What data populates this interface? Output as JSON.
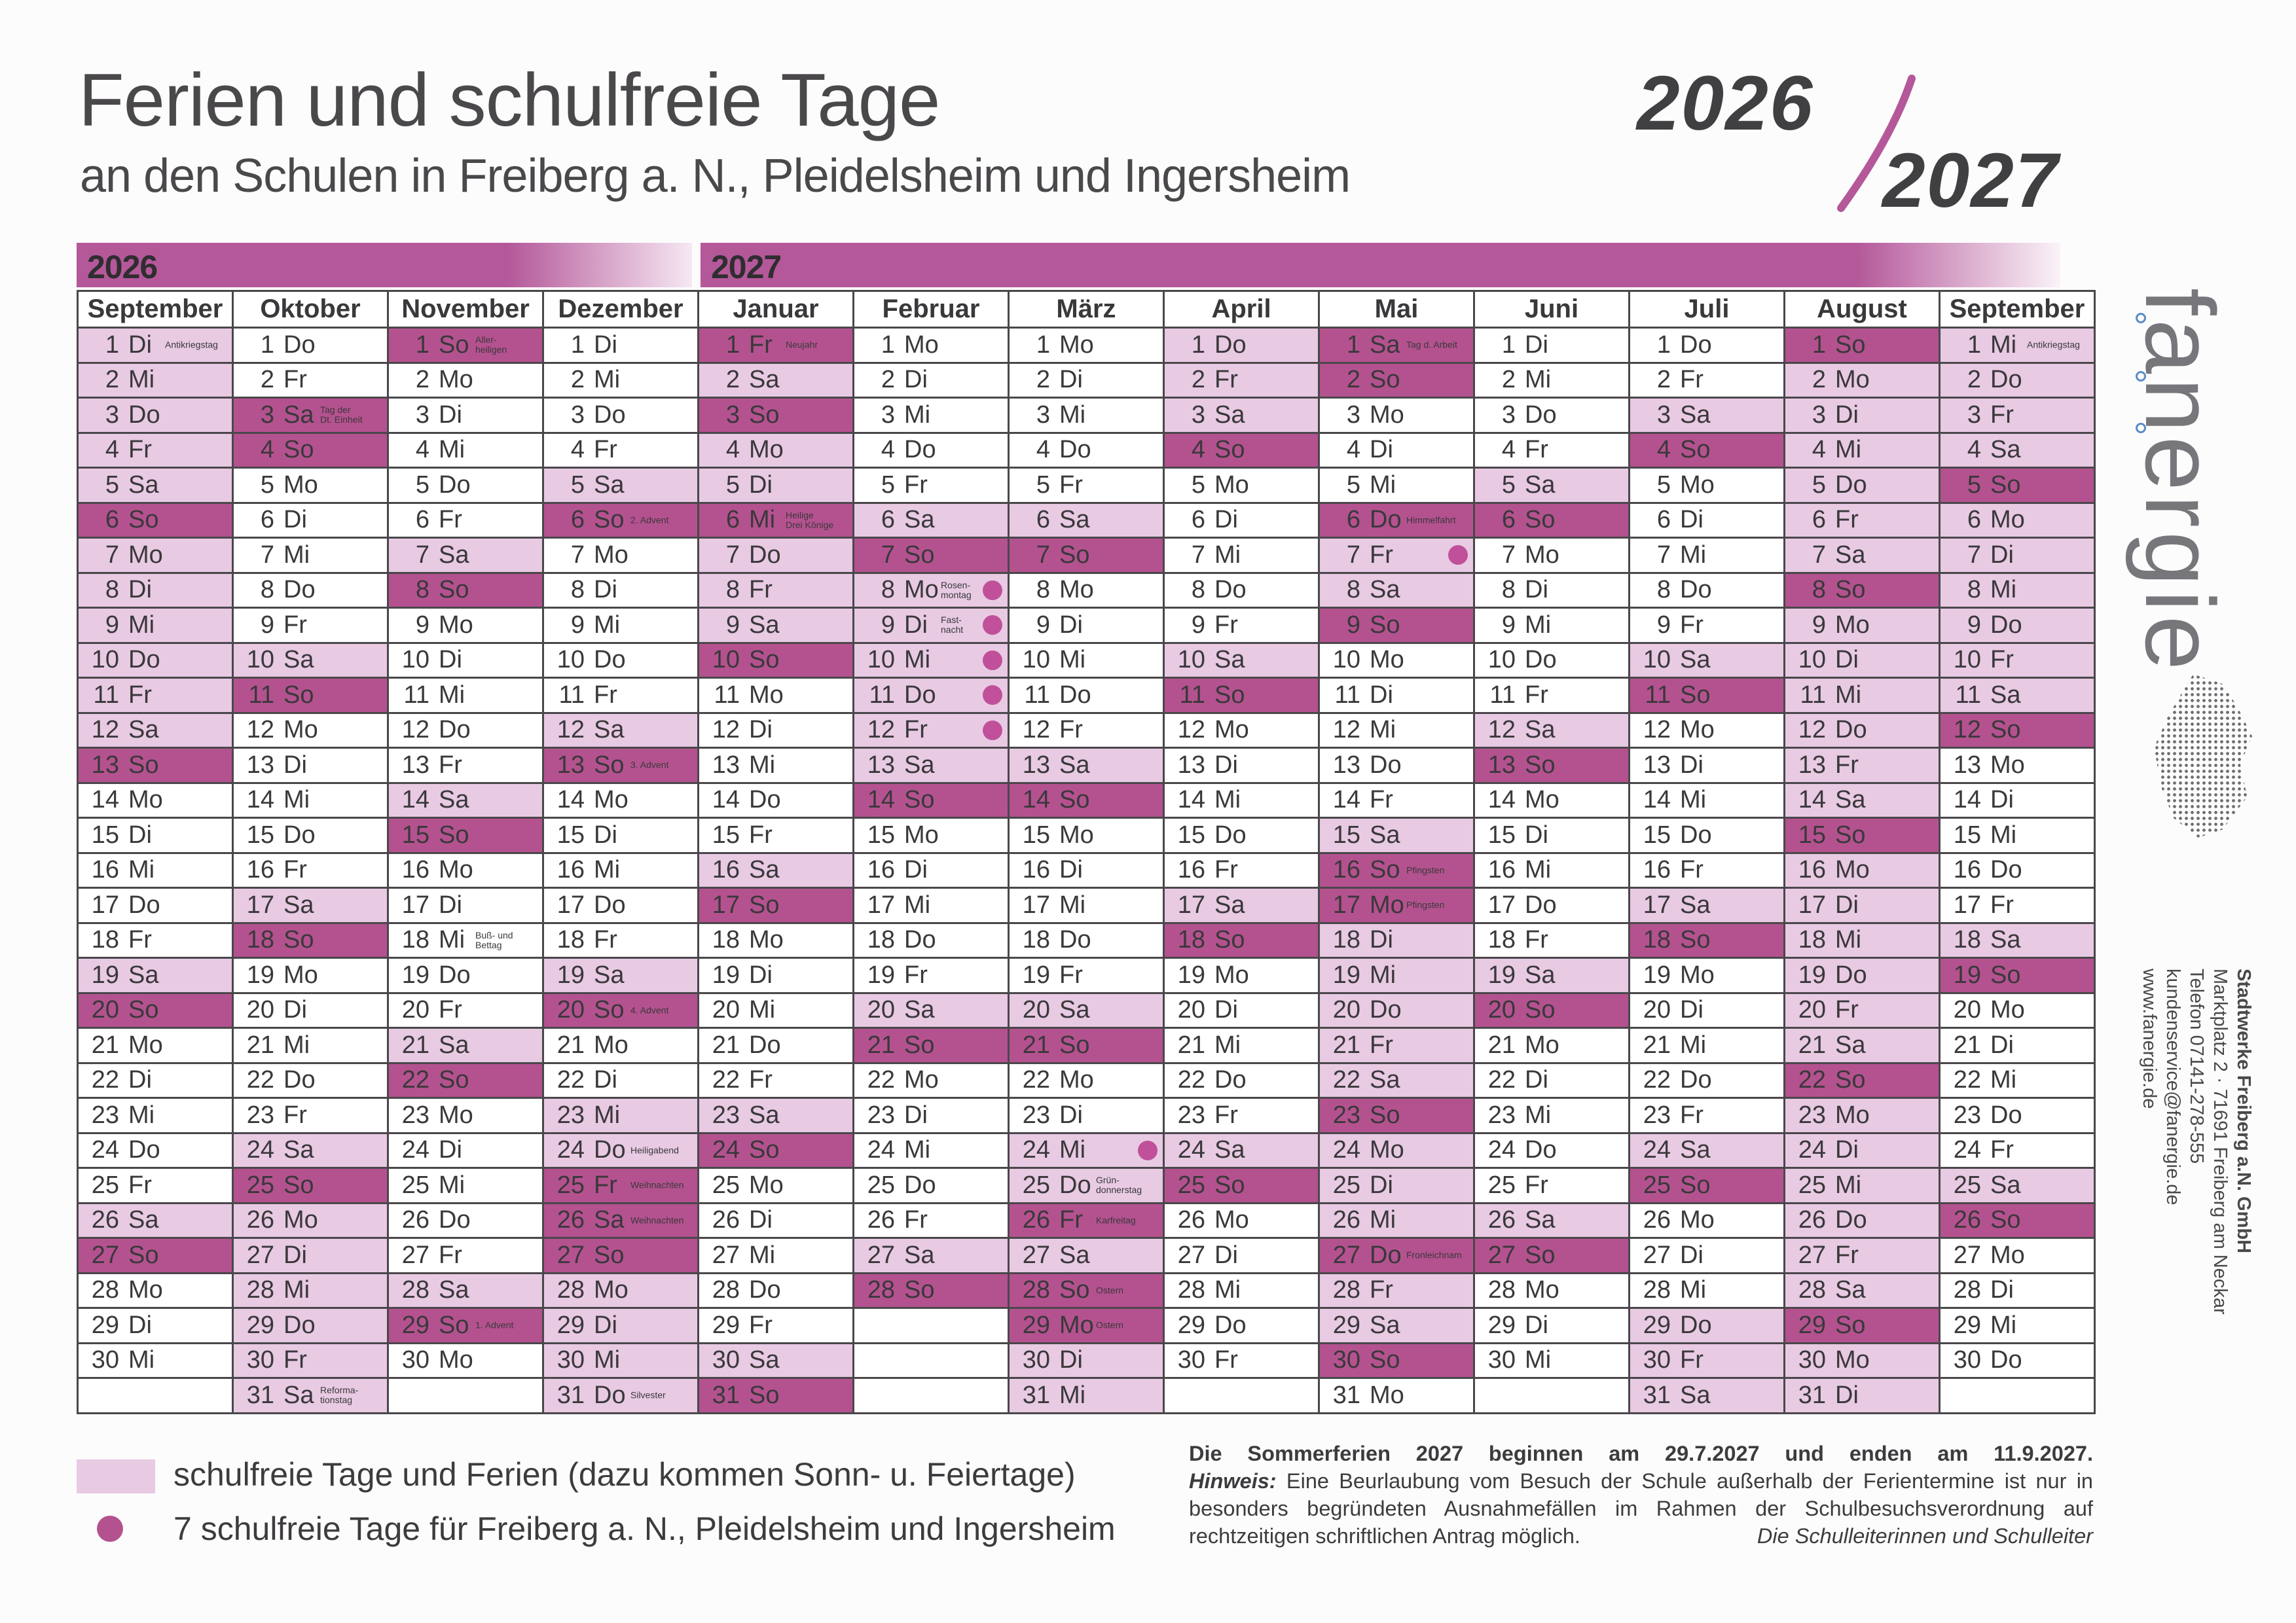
{
  "header": {
    "title": "Ferien und schulfreie Tage",
    "subtitle": "an den Schulen in Freiberg a. N., Pleidelsheim und Ingersheim",
    "year_logo": {
      "first": "2026",
      "second": "2027"
    }
  },
  "year_bars": {
    "first": "2026",
    "second": "2027"
  },
  "colors": {
    "light": "#e8cae3",
    "dark": "#b4528f",
    "dot": "#c0509a",
    "bar": "#b4589a"
  },
  "weekdays": [
    "Mo",
    "Di",
    "Mi",
    "Do",
    "Fr",
    "Sa",
    "So"
  ],
  "shading_legend": {
    ".": "none",
    "L": "schulfrei/Ferien/Samstag",
    "D": "Sonn- und Feiertag"
  },
  "months": [
    {
      "name": "September",
      "year": 2026,
      "days": 30,
      "first_weekday": "Di",
      "shading": "LLLLLDLLLLLLD.....LD.....LD...",
      "notes": {
        "1": "Antikriegstag"
      },
      "dots": []
    },
    {
      "name": "Oktober",
      "year": 2026,
      "days": 31,
      "first_weekday": "Do",
      "shading": "..DD.....LD.....LD.....LDLLLLLL",
      "notes": {
        "3": "Tag der\nDt. Einheit",
        "31": "Reforma-\ntionstag"
      },
      "dots": []
    },
    {
      "name": "November",
      "year": 2026,
      "days": 30,
      "first_weekday": "So",
      "shading": "D.....LD.....LD.....LD.....LD.",
      "notes": {
        "1": "Aller-\nheiligen",
        "18": "Buß- und\nBettag",
        "29": "1. Advent"
      },
      "dots": []
    },
    {
      "name": "Dezember",
      "year": 2026,
      "days": 31,
      "first_weekday": "Di",
      "shading": "....LD.....LD.....LD..LLDDDLLLL",
      "notes": {
        "6": "2. Advent",
        "13": "3. Advent",
        "20": "4. Advent",
        "24": "Heiligabend",
        "25": "Weihnachten",
        "26": "Weihnachten",
        "31": "Silvester"
      },
      "dots": []
    },
    {
      "name": "Januar",
      "year": 2027,
      "days": 31,
      "first_weekday": "Fr",
      "shading": "DLDLLDLLLD.....LD.....LD.....LD",
      "notes": {
        "1": "Neujahr",
        "6": "Heilige\nDrei Könige"
      },
      "dots": []
    },
    {
      "name": "Februar",
      "year": 2027,
      "days": 28,
      "first_weekday": "Mo",
      "shading": ".....LDLLLLLLD.....LD.....LD",
      "notes": {
        "8": "Rosen-\nmontag",
        "9": "Fast-\nnacht"
      },
      "dots": [
        8,
        9,
        10,
        11,
        12
      ]
    },
    {
      "name": "März",
      "year": 2027,
      "days": 31,
      "first_weekday": "Mo",
      "shading": ".....LD.....LD.....LD..LLDLDDLL",
      "notes": {
        "25": "Grün-\ndonnerstag",
        "26": "Karfreitag",
        "28": "Ostern",
        "29": "Ostern"
      },
      "dots": [
        24
      ]
    },
    {
      "name": "April",
      "year": 2027,
      "days": 30,
      "first_weekday": "Do",
      "shading": "LLLD.....LD.....LD.....LD.....",
      "notes": {},
      "dots": []
    },
    {
      "name": "Mai",
      "year": 2027,
      "days": 31,
      "first_weekday": "Sa",
      "shading": "DD...DLLD.....LDDLLLLLDLLLDLLD.",
      "notes": {
        "1": "Tag d. Arbeit",
        "6": "Himmelfahrt",
        "16": "Pfingsten",
        "17": "Pfingsten",
        "27": "Fronleichnam"
      },
      "dots": [
        7
      ]
    },
    {
      "name": "Juni",
      "year": 2027,
      "days": 30,
      "first_weekday": "Di",
      "shading": "....LD.....LD.....LD.....LD...",
      "notes": {},
      "dots": []
    },
    {
      "name": "Juli",
      "year": 2027,
      "days": 31,
      "first_weekday": "Do",
      "shading": "..LD.....LD.....LD.....LD...LLL",
      "notes": {},
      "dots": []
    },
    {
      "name": "August",
      "year": 2027,
      "days": 31,
      "first_weekday": "So",
      "shading": "DLLLLLLDLLLLLLDLLLLLLDLLLLLLDLL",
      "notes": {},
      "dots": []
    },
    {
      "name": "September",
      "year": 2027,
      "days": 30,
      "first_weekday": "Mi",
      "shading": "LLLLDLLLLLLD.....LD.....LD....",
      "notes": {
        "1": "Antikriegstag"
      },
      "dots": []
    }
  ],
  "legend": {
    "light_label": "schulfreie Tage und Ferien (dazu kommen Sonn- u. Feiertage)",
    "dot_label": "7 schulfreie Tage für Freiberg a. N., Pleidelsheim und Ingersheim"
  },
  "notice": {
    "summer": "Die Sommerferien 2027 beginnen am 29.7.2027 und enden am 11.9.2027.",
    "hint_label": "Hinweis:",
    "hint_line1": "Eine Beurlaubung vom Besuch der Schule außerhalb der Ferientermine ist nur in",
    "hint_line2": "besonders begründeten Ausnahmefällen im Rahmen der Schulbesuchsverordnung auf",
    "hint_line3": "rechtzeitigen schriftlichen Antrag möglich.",
    "signature": "Die Schulleiterinnen und Schulleiter"
  },
  "brand": {
    "logo": "fanergie",
    "address": [
      "Stadtwerke Freiberg a.N. GmbH",
      "Marktplatz 2 · 71691 Freiberg am Neckar",
      "Telefon 07141-278-555",
      "kundenservice@fanergie.de",
      "www.fanergie.de"
    ]
  }
}
